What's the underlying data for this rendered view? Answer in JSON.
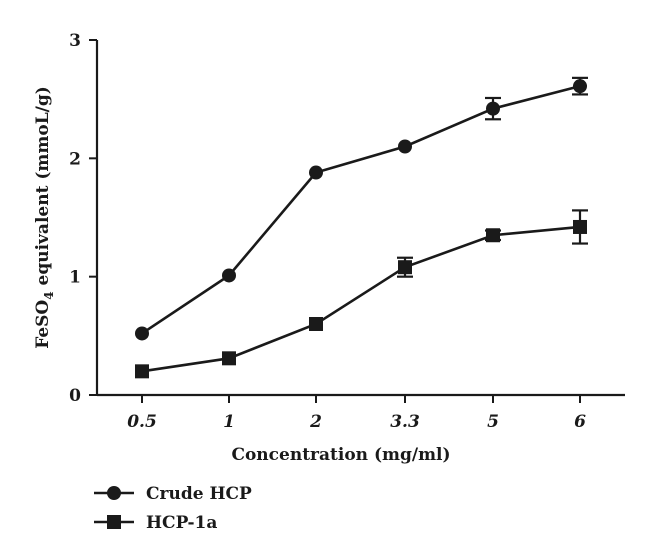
{
  "chart_data": {
    "type": "line",
    "xlabel": "Concentration (mg/ml)",
    "ylabel": "FeSO",
    "ylabel_subscript": "4",
    "ylabel_rest": " equivalent (mmoL/g)",
    "categories": [
      "0.5",
      "1",
      "2",
      "3.3",
      "5",
      "6"
    ],
    "ylim": [
      0,
      3
    ],
    "yticks": [
      "0",
      "1",
      "2",
      "3"
    ],
    "grid": false,
    "legend_position": "bottom-left",
    "series": [
      {
        "name": "Crude HCP",
        "marker": "circle",
        "values": [
          0.52,
          1.01,
          1.88,
          2.1,
          2.42,
          2.61
        ],
        "errors": [
          0.02,
          0.02,
          0.02,
          0.02,
          0.09,
          0.07
        ]
      },
      {
        "name": "HCP-1a",
        "marker": "square",
        "values": [
          0.2,
          0.31,
          0.6,
          1.08,
          1.35,
          1.42
        ],
        "errors": [
          0.02,
          0.02,
          0.02,
          0.08,
          0.04,
          0.14
        ]
      }
    ]
  }
}
